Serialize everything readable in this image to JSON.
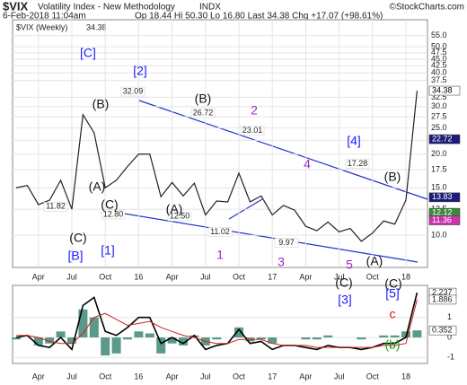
{
  "header": {
    "symbol": "$VIX",
    "title": "Volatility Index - New Methodology",
    "exchange": "INDX",
    "credit": "©StockCharts.com",
    "date": "6-Feb-2018 11:04am",
    "quote": "Op 18.44  Hi 50.30  Lo 16.80  Last 34.38  Chg +17.07 (+98.61%)"
  },
  "chart_data": [
    {
      "type": "line",
      "log_scale": true,
      "grid": true,
      "categories": [
        null,
        null,
        "Apr",
        null,
        null,
        "Jul",
        null,
        null,
        "Oct",
        null,
        null,
        "16",
        null,
        null,
        "Apr",
        null,
        null,
        "Jul",
        null,
        null,
        "Oct",
        null,
        null,
        "17",
        null,
        null,
        "Apr",
        null,
        null,
        "Jul",
        null,
        null,
        "Oct",
        null,
        null,
        "18",
        null
      ],
      "series": [
        {
          "name": "$VIX (Weekly)",
          "color": "#222222",
          "values": [
            15,
            15.3,
            13,
            13.5,
            16,
            12.5,
            28,
            24,
            15,
            16,
            18,
            20,
            20,
            13.9,
            15.7,
            14,
            15.6,
            11.9,
            13.4,
            13.3,
            17,
            13.3,
            14,
            11.9,
            12.9,
            12.4,
            10.8,
            10.4,
            11.2,
            10.3,
            10.6,
            9.5,
            10.2,
            11.3,
            11,
            13.5,
            34.38
          ]
        }
      ],
      "ylim": [
        7.6,
        63
      ],
      "yticks": [
        {
          "value": 10,
          "label": "10.0"
        },
        {
          "value": 12.5,
          "label": "12.5"
        },
        {
          "value": 15,
          "label": "15.0"
        },
        {
          "value": 17.5,
          "label": "17.5"
        },
        {
          "value": 20,
          "label": "20.0"
        },
        {
          "value": 22.5,
          "label": "22.5"
        },
        {
          "value": 25,
          "label": "25.0"
        },
        {
          "value": 27.5,
          "label": "27.5"
        },
        {
          "value": 30,
          "label": "30.0"
        },
        {
          "value": 32.5,
          "label": "32.5"
        },
        {
          "value": 37.5,
          "label": "37.5"
        },
        {
          "value": 40,
          "label": "40.0"
        },
        {
          "value": 42.5,
          "label": "42.5"
        },
        {
          "value": 45,
          "label": "45.0"
        },
        {
          "value": 47.5,
          "label": "47.5"
        },
        {
          "value": 50,
          "label": "50.0"
        },
        {
          "value": 55,
          "label": "55.0"
        }
      ],
      "price_tags": [
        34.38,
        22.72,
        13.83,
        12.12,
        11.36
      ],
      "price_labels": [
        32.09,
        26.72,
        23.01,
        17.28,
        11.82,
        12.8,
        12.5,
        11.02,
        9.97
      ],
      "price_label_texts": [
        "32.09",
        "26.72",
        "23.01",
        "17.28",
        "11.82",
        "12.80",
        "12.50",
        "11.02",
        "9.97"
      ],
      "annotations": [
        {
          "text": "[C]",
          "color": "#1a1aff"
        },
        {
          "text": "[2]",
          "color": "#1a1aff"
        },
        {
          "text": "(B)",
          "color": "#111111"
        },
        {
          "text": "(B)",
          "color": "#111111"
        },
        {
          "text": "2",
          "color": "#9a2bd0"
        },
        {
          "text": "[4]",
          "color": "#1a1aff"
        },
        {
          "text": "4",
          "color": "#9a2bd0"
        },
        {
          "text": "(B)",
          "color": "#111111"
        },
        {
          "text": "(A)",
          "color": "#111111"
        },
        {
          "text": "(C)",
          "color": "#111111"
        },
        {
          "text": "(C)",
          "color": "#111111"
        },
        {
          "text": "[B]",
          "color": "#1a1aff"
        },
        {
          "text": "[1]",
          "color": "#1a1aff"
        },
        {
          "text": "(A)",
          "color": "#111111"
        },
        {
          "text": "1",
          "color": "#9a2bd0"
        },
        {
          "text": "3",
          "color": "#9a2bd0"
        },
        {
          "text": "5",
          "color": "#9a2bd0"
        },
        {
          "text": "(A)",
          "color": "#111111"
        }
      ]
    },
    {
      "type": "macd",
      "series": [
        {
          "color": "#000000",
          "values": [
            0,
            0.1,
            -0.4,
            -0.5,
            0,
            -0.6,
            1.6,
            2.0,
            0.3,
            0.1,
            0.5,
            1.0,
            1.0,
            -0.3,
            0,
            -0.3,
            0.1,
            -0.6,
            -0.4,
            -0.3,
            0.4,
            -0.3,
            -0.2,
            -0.6,
            -0.4,
            -0.4,
            -0.5,
            -0.6,
            -0.4,
            -0.5,
            -0.5,
            -0.6,
            -0.5,
            -0.3,
            -0.3,
            0,
            2.237
          ]
        },
        {
          "color": "#cc2222",
          "values": [
            0.1,
            0.1,
            0,
            -0.2,
            -0.3,
            -0.3,
            0.2,
            1.0,
            1.2,
            0.9,
            0.6,
            0.7,
            0.8,
            0.5,
            0.3,
            0.1,
            0,
            -0.2,
            -0.3,
            -0.3,
            -0.1,
            -0.1,
            -0.1,
            -0.3,
            -0.4,
            -0.4,
            -0.4,
            -0.5,
            -0.5,
            -0.5,
            -0.5,
            -0.5,
            -0.5,
            -0.4,
            -0.4,
            -0.3,
            1.886
          ]
        }
      ],
      "histogram": {
        "color": "#5a9a8a",
        "values": [
          -0.1,
          0,
          -0.4,
          -0.3,
          0.3,
          -0.3,
          1.4,
          1.0,
          -0.9,
          -0.8,
          -0.1,
          0.3,
          0.2,
          -0.8,
          -0.3,
          -0.4,
          0.1,
          -0.4,
          -0.1,
          0,
          0.5,
          -0.2,
          -0.1,
          -0.3,
          0,
          0,
          -0.1,
          -0.1,
          0.1,
          0,
          0,
          -0.1,
          0,
          0.1,
          0.1,
          0.3,
          0.352
        ]
      },
      "ylim": [
        -1.3,
        2.6
      ],
      "yticks": [
        -1,
        0,
        1
      ],
      "annotations": [
        {
          "text": "(C)",
          "color": "#111111"
        },
        {
          "text": "[3]",
          "color": "#1a1aff"
        },
        {
          "text": "(C)",
          "color": "#111111"
        },
        {
          "text": "[5]",
          "color": "#1a1aff"
        },
        {
          "text": "c",
          "color": "#dd1111"
        },
        {
          "text": "(b)",
          "color": "#1a9a1a"
        }
      ]
    }
  ]
}
